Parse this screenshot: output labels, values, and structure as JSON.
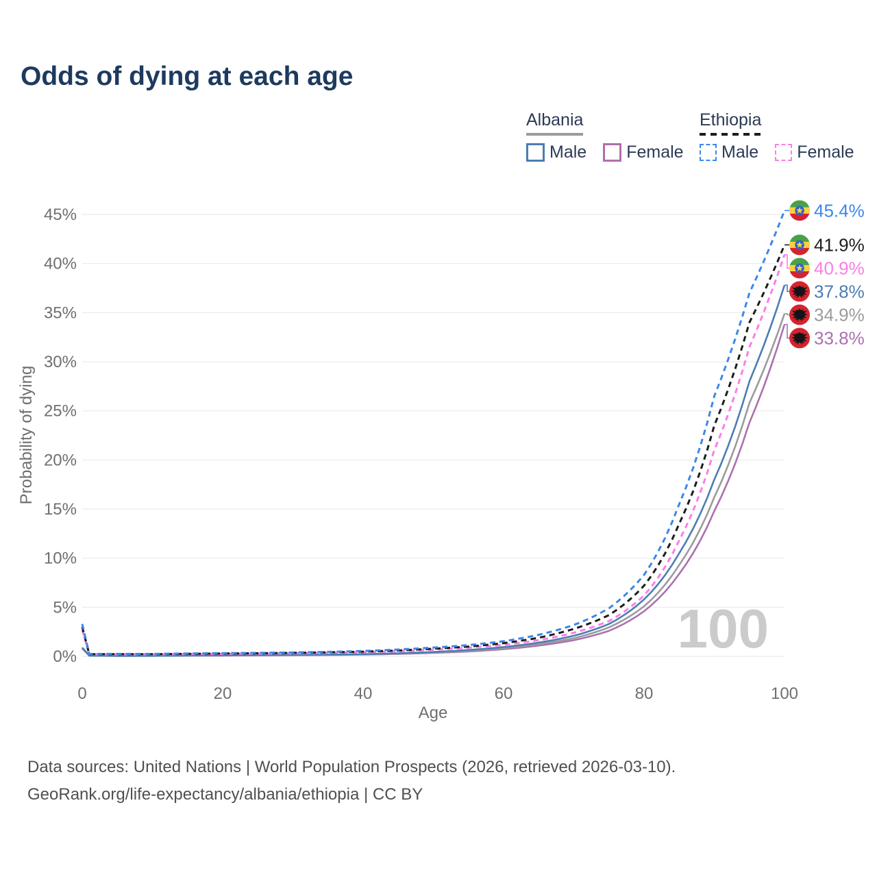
{
  "title": "Odds of dying at each age",
  "watermark": "100",
  "legend": {
    "groups": [
      {
        "label": "Albania",
        "line_style": "solid",
        "line_color": "#9b9b9b",
        "items": [
          {
            "label": "Male",
            "color": "#4c7db3",
            "dashed": false
          },
          {
            "label": "Female",
            "color": "#b06fab",
            "dashed": false
          }
        ]
      },
      {
        "label": "Ethiopia",
        "line_style": "dashed",
        "line_color": "#1c1c1c",
        "items": [
          {
            "label": "Male",
            "color": "#3d87e8",
            "dashed": true
          },
          {
            "label": "Female",
            "color": "#fb7de7",
            "dashed": true
          }
        ]
      }
    ]
  },
  "chart_data": {
    "type": "line",
    "title": "Odds of dying at each age",
    "xlabel": "Age",
    "ylabel": "Probability of dying",
    "xlim": [
      0,
      100
    ],
    "ylim": [
      0,
      45
    ],
    "grid": true,
    "x_ticks": [
      0,
      20,
      40,
      60,
      80,
      100
    ],
    "y_ticks": [
      "0%",
      "5%",
      "10%",
      "15%",
      "20%",
      "25%",
      "30%",
      "35%",
      "40%",
      "45%"
    ],
    "x": [
      0,
      1,
      5,
      10,
      15,
      20,
      25,
      30,
      35,
      40,
      45,
      50,
      55,
      60,
      65,
      70,
      75,
      80,
      85,
      90,
      95,
      100
    ],
    "series": [
      {
        "name": "Ethiopia Male",
        "country": "Ethiopia",
        "sex": "Male",
        "flag": "ethiopia",
        "color": "#3d87e8",
        "label_color": "#3d87e8",
        "dashed": true,
        "end_label": "45.4%",
        "values": [
          3.3,
          0.25,
          0.25,
          0.25,
          0.3,
          0.33,
          0.36,
          0.4,
          0.46,
          0.55,
          0.7,
          0.9,
          1.15,
          1.55,
          2.2,
          3.2,
          4.9,
          8.3,
          15.5,
          26.5,
          37.0,
          45.4
        ]
      },
      {
        "name": "Ethiopia (both sexes)",
        "country": "Ethiopia",
        "sex": "All",
        "flag": "ethiopia",
        "color": "#1c1c1c",
        "label_color": "#1c1c1c",
        "dashed": true,
        "end_label": "41.9%",
        "values": [
          3.0,
          0.22,
          0.22,
          0.22,
          0.26,
          0.29,
          0.32,
          0.36,
          0.41,
          0.48,
          0.6,
          0.78,
          1.0,
          1.35,
          1.9,
          2.8,
          4.2,
          7.2,
          13.5,
          23.5,
          34.0,
          41.9
        ]
      },
      {
        "name": "Ethiopia Female",
        "country": "Ethiopia",
        "sex": "Female",
        "flag": "ethiopia",
        "color": "#fb7de7",
        "label_color": "#fb7de7",
        "dashed": true,
        "end_label": "40.9%",
        "values": [
          2.7,
          0.2,
          0.2,
          0.2,
          0.23,
          0.25,
          0.28,
          0.31,
          0.36,
          0.42,
          0.52,
          0.68,
          0.88,
          1.18,
          1.65,
          2.4,
          3.6,
          6.2,
          11.8,
          21.0,
          31.5,
          40.9
        ]
      },
      {
        "name": "Albania Male",
        "country": "Albania",
        "sex": "Male",
        "flag": "albania",
        "color": "#4c7db3",
        "label_color": "#4c7db3",
        "dashed": false,
        "end_label": "37.8%",
        "values": [
          0.9,
          0.08,
          0.06,
          0.06,
          0.09,
          0.12,
          0.13,
          0.15,
          0.18,
          0.23,
          0.32,
          0.45,
          0.65,
          0.95,
          1.4,
          2.1,
          3.3,
          5.8,
          10.5,
          18.0,
          28.0,
          37.8
        ]
      },
      {
        "name": "Albania (both sexes)",
        "country": "Albania",
        "sex": "All",
        "flag": "albania",
        "color": "#9b9b9b",
        "label_color": "#9b9b9b",
        "dashed": false,
        "end_label": "34.9%",
        "values": [
          0.85,
          0.07,
          0.05,
          0.05,
          0.08,
          0.1,
          0.11,
          0.13,
          0.16,
          0.2,
          0.28,
          0.4,
          0.57,
          0.83,
          1.25,
          1.85,
          2.95,
          5.1,
          9.3,
          16.2,
          25.8,
          34.9
        ]
      },
      {
        "name": "Albania Female",
        "country": "Albania",
        "sex": "Female",
        "flag": "albania",
        "color": "#ab70b0",
        "label_color": "#ab70b0",
        "dashed": false,
        "end_label": "33.8%",
        "values": [
          0.8,
          0.07,
          0.04,
          0.05,
          0.07,
          0.08,
          0.1,
          0.12,
          0.14,
          0.18,
          0.25,
          0.35,
          0.5,
          0.73,
          1.1,
          1.65,
          2.6,
          4.6,
          8.4,
          14.8,
          23.8,
          33.8
        ]
      }
    ],
    "legend_position": "top-right",
    "annotations": {
      "current_age": "100"
    }
  },
  "footer": {
    "line1": "Data sources: United Nations | World Population Prospects (2026, retrieved 2026-03-10).",
    "line2": "GeoRank.org/life-expectancy/albania/ethiopia | CC BY"
  }
}
